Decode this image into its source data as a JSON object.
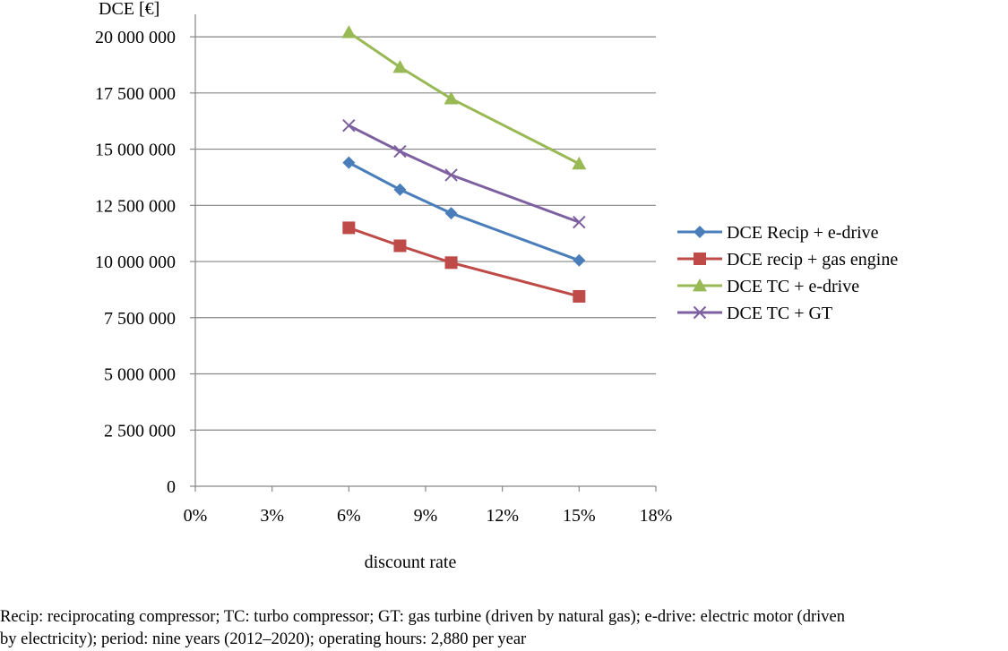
{
  "chart_data": {
    "type": "line",
    "title": "",
    "ylabel": "DCE [€]",
    "xlabel": "discount rate",
    "xlim": [
      0,
      18
    ],
    "ylim": [
      0,
      21000000
    ],
    "x_ticks": [
      0,
      3,
      6,
      9,
      12,
      15,
      18
    ],
    "x_tick_labels": [
      "0%",
      "3%",
      "6%",
      "9%",
      "12%",
      "15%",
      "18%"
    ],
    "y_ticks": [
      0,
      2500000,
      5000000,
      7500000,
      10000000,
      12500000,
      15000000,
      17500000,
      20000000
    ],
    "y_tick_labels": [
      "0",
      "2 500 000",
      "5 000 000",
      "7 500 000",
      "10 000 000",
      "12 500 000",
      "15 000 000",
      "17 500 000",
      "20 000 000"
    ],
    "grid": "horizontal",
    "legend_position": "right",
    "series": [
      {
        "name": "DCE Recip + e-drive",
        "color": "#4a7ebb",
        "marker": "diamond",
        "x": [
          6,
          8,
          10,
          15
        ],
        "values": [
          14400000,
          13200000,
          12150000,
          10050000
        ]
      },
      {
        "name": "DCE recip + gas engine",
        "color": "#be4b48",
        "marker": "square",
        "x": [
          6,
          8,
          10,
          15
        ],
        "values": [
          11500000,
          10700000,
          9950000,
          8450000
        ]
      },
      {
        "name": "DCE TC + e-drive",
        "color": "#98b954",
        "marker": "triangle",
        "x": [
          6,
          8,
          10,
          15
        ],
        "values": [
          20200000,
          18650000,
          17250000,
          14350000
        ]
      },
      {
        "name": "DCE TC + GT",
        "color": "#7d60a0",
        "marker": "x",
        "x": [
          6,
          8,
          10,
          15
        ],
        "values": [
          16050000,
          14900000,
          13850000,
          11750000
        ]
      }
    ]
  },
  "caption": {
    "line1": "Recip: reciprocating compressor; TC: turbo compressor; GT: gas turbine (driven by natural gas); e-drive: electric motor (driven",
    "line2": "by electricity); period: nine years (2012–2020); operating hours: 2,880 per year"
  }
}
